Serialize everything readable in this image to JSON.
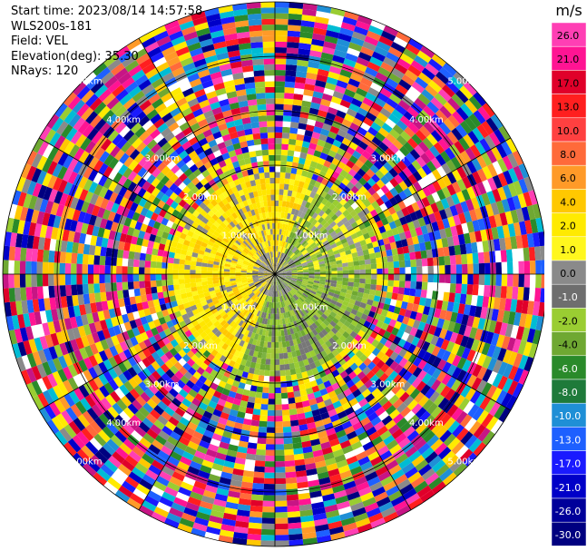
{
  "header": {
    "start_time": "Start time: 2023/08/14 14:57:58",
    "site": "WLS200s-181",
    "field": "Field: VEL",
    "elevation": "Elevation(deg): 35.30",
    "nrays": "NRays: 120"
  },
  "colorbar": {
    "unit": "m/s",
    "ticks": [
      "26.0",
      "21.0",
      "17.0",
      "13.0",
      "10.0",
      "8.0",
      "6.0",
      "4.0",
      "2.0",
      "1.0",
      "0.0",
      "-1.0",
      "-2.0",
      "-4.0",
      "-6.0",
      "-8.0",
      "-10.0",
      "-13.0",
      "-17.0",
      "-21.0",
      "-26.0",
      "-30.0"
    ],
    "colors": [
      "#ff3fb4",
      "#ff1493",
      "#e0002a",
      "#ff1f1f",
      "#ff4040",
      "#ff6a3a",
      "#ff9a28",
      "#ffc800",
      "#ffea00",
      "#fff71e",
      "#8a8a8a",
      "#6e6e6e",
      "#9acd32",
      "#6fa832",
      "#2a8a2a",
      "#1e7a3a",
      "#1f8fd6",
      "#1e60ff",
      "#1a1aff",
      "#0000c8",
      "#00009a",
      "#000080"
    ]
  },
  "range_rings": {
    "labels": [
      "1.00km",
      "2.00km",
      "3.00km",
      "4.00km",
      "5.00km"
    ]
  },
  "palette": {
    "near_yellow": [
      "#ffea00",
      "#fff71e",
      "#ffc800",
      "#ffe600"
    ],
    "near_green": [
      "#9acd32",
      "#6fa832",
      "#7cb342",
      "#a5c93a"
    ],
    "near_gray": [
      "#8a8a8a",
      "#777777",
      "#9a9a9a"
    ],
    "noise": [
      "#ff1493",
      "#ff3fb4",
      "#e0002a",
      "#ff1f1f",
      "#ff9a28",
      "#ffc800",
      "#ffea00",
      "#9acd32",
      "#2a8a2a",
      "#1f8fd6",
      "#1e60ff",
      "#1a1aff",
      "#0000c8",
      "#000080",
      "#8a8a8a",
      "#ffffff",
      "#6fa832",
      "#ff6a3a",
      "#c71585",
      "#00bcd4"
    ]
  }
}
